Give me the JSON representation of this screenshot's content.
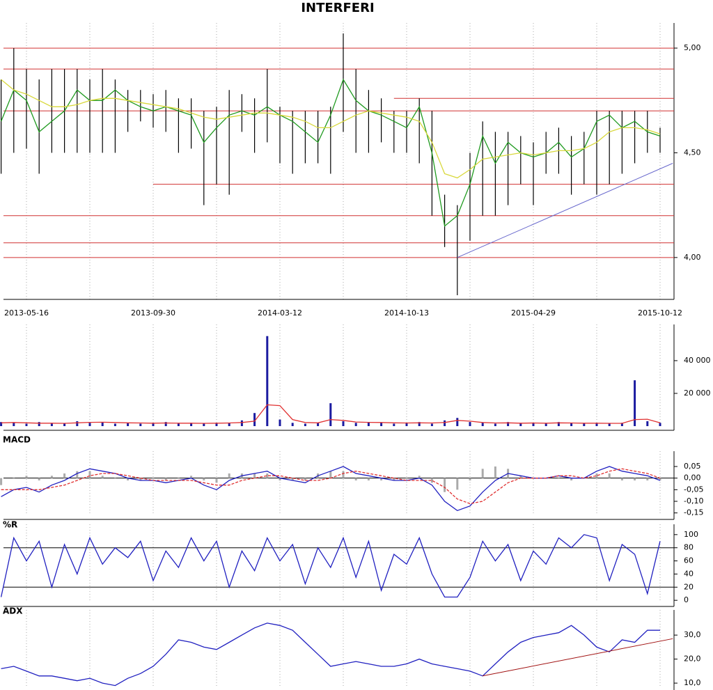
{
  "chart_data": [
    {
      "type": "ohlc",
      "title": "INTERFERI",
      "categories": [
        null,
        null,
        "2013-05-16",
        null,
        null,
        null,
        null,
        null,
        null,
        null,
        null,
        null,
        "2013-09-30",
        null,
        null,
        null,
        null,
        null,
        null,
        null,
        null,
        null,
        "2014-03-12",
        null,
        null,
        null,
        null,
        null,
        null,
        null,
        null,
        null,
        "2014-10-13",
        null,
        null,
        null,
        null,
        null,
        null,
        null,
        null,
        null,
        "2015-04-29",
        null,
        null,
        null,
        null,
        null,
        null,
        null,
        null,
        null,
        "2015-10-12"
      ],
      "high": [
        4.85,
        5.0,
        4.9,
        4.85,
        4.9,
        4.9,
        4.9,
        4.85,
        4.9,
        4.85,
        4.8,
        4.8,
        4.78,
        4.8,
        4.76,
        4.76,
        4.7,
        4.72,
        4.8,
        4.78,
        4.76,
        4.9,
        4.72,
        4.7,
        4.7,
        4.7,
        4.72,
        5.07,
        4.9,
        4.8,
        4.76,
        4.7,
        4.7,
        4.76,
        4.7,
        4.3,
        4.25,
        4.5,
        4.65,
        4.6,
        4.6,
        4.58,
        4.55,
        4.6,
        4.62,
        4.58,
        4.6,
        4.7,
        4.7,
        4.7,
        4.7,
        4.7,
        4.62
      ],
      "low": [
        4.4,
        4.5,
        4.52,
        4.4,
        4.5,
        4.5,
        4.5,
        4.5,
        4.5,
        4.5,
        4.6,
        4.65,
        4.62,
        4.6,
        4.5,
        4.52,
        4.25,
        4.35,
        4.3,
        4.6,
        4.5,
        4.55,
        4.45,
        4.4,
        4.45,
        4.45,
        4.4,
        4.6,
        4.5,
        4.5,
        4.55,
        4.5,
        4.5,
        4.45,
        4.2,
        4.05,
        3.82,
        4.08,
        4.2,
        4.2,
        4.25,
        4.35,
        4.25,
        4.4,
        4.4,
        4.3,
        4.35,
        4.3,
        4.35,
        4.4,
        4.45,
        4.5,
        4.5
      ],
      "lines": [
        {
          "color": "#1f9a1f",
          "values": [
            4.65,
            4.8,
            4.75,
            4.6,
            4.65,
            4.7,
            4.8,
            4.75,
            4.75,
            4.8,
            4.75,
            4.72,
            4.7,
            4.72,
            4.7,
            4.68,
            4.55,
            4.62,
            4.68,
            4.7,
            4.68,
            4.72,
            4.68,
            4.65,
            4.6,
            4.55,
            4.68,
            4.85,
            4.75,
            4.7,
            4.68,
            4.65,
            4.62,
            4.72,
            4.5,
            4.15,
            4.2,
            4.35,
            4.58,
            4.45,
            4.55,
            4.5,
            4.48,
            4.5,
            4.55,
            4.48,
            4.52,
            4.65,
            4.68,
            4.62,
            4.65,
            4.6,
            4.58
          ]
        },
        {
          "color": "#d8d83a",
          "values": [
            4.85,
            4.8,
            4.78,
            4.75,
            4.72,
            4.72,
            4.73,
            4.75,
            4.76,
            4.76,
            4.75,
            4.74,
            4.73,
            4.72,
            4.71,
            4.69,
            4.67,
            4.66,
            4.67,
            4.68,
            4.69,
            4.69,
            4.68,
            4.67,
            4.65,
            4.62,
            4.62,
            4.65,
            4.68,
            4.7,
            4.69,
            4.68,
            4.67,
            4.65,
            4.55,
            4.4,
            4.38,
            4.42,
            4.47,
            4.48,
            4.49,
            4.5,
            4.49,
            4.5,
            4.51,
            4.51,
            4.52,
            4.55,
            4.6,
            4.62,
            4.62,
            4.61,
            4.59
          ]
        }
      ],
      "hlines": [
        {
          "y": 5.0
        },
        {
          "y": 4.9
        },
        {
          "y": 4.76,
          "from": 31
        },
        {
          "y": 4.7
        },
        {
          "y": 4.35,
          "from": 12
        },
        {
          "y": 4.2
        },
        {
          "y": 4.07
        },
        {
          "y": 4.0
        }
      ],
      "hline_color": "#d03030",
      "trendline": {
        "x": [
          36,
          53
        ],
        "y": [
          4.0,
          4.45
        ],
        "color": "#6666cc"
      },
      "ylim": [
        3.8,
        5.08
      ],
      "yticks": [
        {
          "value": 4.0,
          "label": "4,00"
        },
        {
          "value": 4.5,
          "label": "4,50"
        },
        {
          "value": 5.0,
          "label": "5,00"
        }
      ]
    },
    {
      "type": "bar",
      "color": "#1a1aa0",
      "values": [
        2500,
        2000,
        1500,
        2500,
        1500,
        1500,
        3000,
        2000,
        2500,
        1500,
        2000,
        1500,
        1500,
        2500,
        1500,
        2000,
        1500,
        2000,
        2000,
        3500,
        8000,
        55000,
        4000,
        2000,
        1500,
        2000,
        14000,
        3000,
        2000,
        2500,
        2000,
        1500,
        2000,
        2500,
        1500,
        3500,
        5000,
        2500,
        2000,
        1500,
        2500,
        1500,
        2000,
        1500,
        2500,
        2000,
        1500,
        2000,
        1500,
        2000,
        28000,
        3000,
        2000
      ],
      "lines": [
        {
          "color": "#e03030",
          "values": [
            2000,
            2200,
            2000,
            1800,
            1800,
            1700,
            2000,
            2300,
            2400,
            2200,
            2000,
            1900,
            1800,
            1900,
            1800,
            1800,
            1700,
            1800,
            1900,
            2200,
            3000,
            13000,
            12500,
            4000,
            2200,
            2000,
            4000,
            3500,
            2500,
            2300,
            2200,
            2000,
            1900,
            2000,
            1900,
            2200,
            3500,
            3000,
            2200,
            1900,
            2000,
            1800,
            1900,
            1800,
            2000,
            1900,
            1800,
            1800,
            1700,
            1700,
            4000,
            4200,
            2000
          ]
        }
      ],
      "ylim": [
        0,
        57000
      ],
      "yticks": [
        {
          "value": 20000,
          "label": "20 000"
        },
        {
          "value": 40000,
          "label": "40 000"
        }
      ]
    },
    {
      "type": "bar",
      "title": "MACD",
      "color": "#aaaaaa",
      "values": [
        -0.03,
        0,
        0.01,
        -0.01,
        0.01,
        0.02,
        0.03,
        0.03,
        0.01,
        0,
        -0.01,
        -0.01,
        0,
        -0.01,
        0,
        0.01,
        -0.01,
        -0.02,
        0.02,
        0.02,
        0.02,
        0.02,
        -0.01,
        -0.01,
        -0.01,
        0.02,
        0.03,
        0.03,
        -0.01,
        -0.01,
        -0.01,
        -0.01,
        0,
        0.01,
        -0.02,
        -0.06,
        -0.05,
        -0.01,
        0.04,
        0.05,
        0.04,
        0.01,
        0,
        0,
        0,
        -0.01,
        0,
        0.02,
        0.02,
        -0.01,
        -0.01,
        -0.01,
        -0.01
      ],
      "lines": [
        {
          "color": "#2020c0",
          "values": [
            -0.08,
            -0.05,
            -0.04,
            -0.06,
            -0.03,
            -0.01,
            0.02,
            0.04,
            0.03,
            0.02,
            0.0,
            -0.01,
            -0.01,
            -0.02,
            -0.01,
            0.0,
            -0.03,
            -0.05,
            -0.01,
            0.01,
            0.02,
            0.03,
            0.0,
            -0.01,
            -0.02,
            0.01,
            0.03,
            0.05,
            0.02,
            0.01,
            0.0,
            -0.01,
            -0.01,
            0.0,
            -0.03,
            -0.1,
            -0.14,
            -0.12,
            -0.06,
            -0.01,
            0.02,
            0.01,
            0.0,
            0.0,
            0.01,
            0.0,
            0.0,
            0.03,
            0.05,
            0.03,
            0.02,
            0.01,
            -0.01
          ]
        },
        {
          "color": "#e03030",
          "dash": true,
          "values": [
            -0.05,
            -0.05,
            -0.05,
            -0.05,
            -0.04,
            -0.03,
            -0.01,
            0.01,
            0.02,
            0.02,
            0.01,
            0.0,
            -0.01,
            -0.01,
            -0.01,
            -0.01,
            -0.02,
            -0.03,
            -0.03,
            -0.01,
            0.0,
            0.01,
            0.01,
            0.0,
            -0.01,
            -0.01,
            0.0,
            0.02,
            0.03,
            0.02,
            0.01,
            0.0,
            -0.01,
            -0.01,
            -0.01,
            -0.04,
            -0.09,
            -0.11,
            -0.1,
            -0.06,
            -0.02,
            0.0,
            0.0,
            0.0,
            0.01,
            0.01,
            0.0,
            0.01,
            0.03,
            0.04,
            0.03,
            0.02,
            0.0
          ]
        }
      ],
      "hlines": [
        {
          "y": 0
        }
      ],
      "hline_color": "#000000",
      "ylim": [
        -0.16,
        0.08
      ],
      "yticks": [
        {
          "value": 0.05,
          "label": "0,05"
        },
        {
          "value": 0,
          "label": "0,00"
        },
        {
          "value": -0.05,
          "label": "-0,05"
        },
        {
          "value": -0.1,
          "label": "-0,10"
        },
        {
          "value": -0.15,
          "label": "-0,15"
        }
      ]
    },
    {
      "type": "line",
      "title": "%R",
      "lines": [
        {
          "color": "#2020c0",
          "values": [
            5,
            95,
            60,
            90,
            20,
            85,
            40,
            95,
            55,
            80,
            65,
            90,
            30,
            75,
            50,
            95,
            60,
            90,
            20,
            75,
            45,
            95,
            60,
            85,
            25,
            80,
            50,
            95,
            35,
            90,
            15,
            70,
            55,
            95,
            40,
            5,
            5,
            35,
            90,
            60,
            85,
            30,
            75,
            55,
            95,
            80,
            100,
            95,
            30,
            85,
            70,
            10,
            90
          ]
        }
      ],
      "hlines": [
        {
          "y": 20
        },
        {
          "y": 80
        }
      ],
      "hline_color": "#000000",
      "ylim": [
        -3,
        103
      ],
      "yticks": [
        0,
        20,
        40,
        60,
        80,
        100
      ]
    },
    {
      "type": "line",
      "title": "ADX",
      "lines": [
        {
          "color": "#2020c0",
          "values": [
            16,
            17,
            15,
            13,
            13,
            12,
            11,
            12,
            10,
            9,
            12,
            14,
            17,
            22,
            28,
            27,
            25,
            24,
            27,
            30,
            33,
            35,
            34,
            32,
            27,
            22,
            17,
            18,
            19,
            18,
            17,
            17,
            18,
            20,
            18,
            17,
            16,
            15,
            13,
            18,
            23,
            27,
            29,
            30,
            31,
            34,
            30,
            25,
            23,
            28,
            27,
            32,
            32
          ]
        }
      ],
      "trendline": {
        "x": [
          38,
          53
        ],
        "y": [
          13,
          28.5
        ],
        "color": "#a01010"
      },
      "ylim": [
        8,
        37
      ],
      "yticks": [
        {
          "value": 10,
          "label": "10,0"
        },
        {
          "value": 20,
          "label": "20,0"
        },
        {
          "value": 30,
          "label": "30,0"
        }
      ]
    }
  ]
}
